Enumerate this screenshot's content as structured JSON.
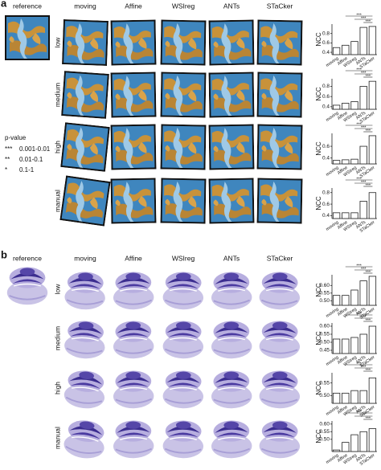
{
  "panels": [
    {
      "label": "a",
      "columns": [
        "reference",
        "moving",
        "Affine",
        "WSIreg",
        "ANTs",
        "STaCker"
      ],
      "rows": [
        "low",
        "medium",
        "high",
        "manual"
      ]
    },
    {
      "label": "b",
      "columns": [
        "reference",
        "moving",
        "Affine",
        "WSIreg",
        "ANTs",
        "STaCker"
      ],
      "rows": [
        "low",
        "medium",
        "high",
        "manual"
      ]
    }
  ],
  "legend": {
    "title": "p-value",
    "items": [
      {
        "symbol": "***",
        "range": "0.001-0.01"
      },
      {
        "symbol": "**",
        "range": "0.01-0.1"
      },
      {
        "symbol": "*",
        "range": "0.1-1"
      }
    ]
  },
  "chart_data": [
    {
      "type": "bar",
      "ylabel": "NCC",
      "categories": [
        "moving",
        "Affine",
        "WSIreg",
        "ANTs",
        "STaCker"
      ],
      "values": [
        0.5,
        0.55,
        0.63,
        0.93,
        0.95
      ],
      "ylim": [
        0.35,
        1.0
      ],
      "yticks": [
        0.4,
        0.6,
        0.8
      ],
      "significance": [
        "***",
        "***",
        "***"
      ],
      "color": "#ffffff"
    },
    {
      "type": "bar",
      "ylabel": "NCC",
      "categories": [
        "moving",
        "Affine",
        "WSIreg",
        "ANTs",
        "STaCker"
      ],
      "values": [
        0.43,
        0.47,
        0.5,
        0.8,
        0.9
      ],
      "ylim": [
        0.35,
        0.95
      ],
      "yticks": [
        0.4,
        0.6,
        0.8
      ],
      "significance": [
        "***",
        "***",
        "***"
      ],
      "color": "#ffffff"
    },
    {
      "type": "bar",
      "ylabel": "NCC",
      "categories": [
        "moving",
        "Affine",
        "WSIreg",
        "ANTs",
        "STaCker"
      ],
      "values": [
        0.36,
        0.37,
        0.38,
        0.6,
        0.78
      ],
      "ylim": [
        0.3,
        0.82
      ],
      "yticks": [
        0.4,
        0.6
      ],
      "significance": [
        "***",
        "***",
        "***"
      ],
      "color": "#ffffff"
    },
    {
      "type": "bar",
      "ylabel": "NCC",
      "categories": [
        "moving",
        "Affine",
        "WSIreg",
        "ANTs",
        "STaCker"
      ],
      "values": [
        0.45,
        0.45,
        0.45,
        0.65,
        0.8
      ],
      "ylim": [
        0.35,
        0.88
      ],
      "yticks": [
        0.4,
        0.6,
        0.8
      ],
      "significance": [
        "***",
        "***",
        "***"
      ],
      "color": "#ffffff"
    },
    {
      "type": "bar",
      "ylabel": "NCC",
      "categories": [
        "moving",
        "Affine",
        "WSIreg",
        "ANTs",
        "STaCker"
      ],
      "values": [
        0.535,
        0.535,
        0.57,
        0.63,
        0.66
      ],
      "ylim": [
        0.47,
        0.67
      ],
      "yticks": [
        {
          "value": 0.5,
          "label": "0.50"
        },
        {
          "value": 0.55,
          "label": "0.55"
        },
        {
          "value": 0.6,
          "label": "0.60"
        }
      ],
      "significance": [
        "***",
        "***",
        "***"
      ],
      "color": "#ffffff"
    },
    {
      "type": "bar",
      "ylabel": "NCC",
      "categories": [
        "moving",
        "Affine",
        "WSIreg",
        "ANTs",
        "STaCker"
      ],
      "values": [
        0.52,
        0.52,
        0.53,
        0.55,
        0.6
      ],
      "ylim": [
        0.43,
        0.62
      ],
      "yticks": [
        0.45,
        {
          "value": 0.5,
          "label": "0.50"
        },
        0.55,
        {
          "value": 0.6,
          "label": "0.60"
        }
      ],
      "significance": [
        "***",
        "***",
        "***"
      ],
      "color": "#ffffff"
    },
    {
      "type": "bar",
      "ylabel": "NCC",
      "categories": [
        "moving",
        "Affine",
        "WSIreg",
        "ANTs",
        "STaCker"
      ],
      "values": [
        0.51,
        0.51,
        0.52,
        0.52,
        0.57
      ],
      "ylim": [
        0.47,
        0.59
      ],
      "yticks": [
        {
          "value": 0.5,
          "label": "0.50"
        },
        0.55
      ],
      "significance": [
        "***",
        "***",
        "***"
      ],
      "color": "#ffffff"
    },
    {
      "type": "bar",
      "ylabel": "NCC",
      "categories": [
        "moving",
        "Affine",
        "WSIreg",
        "ANTs",
        "STaCker"
      ],
      "values": [
        0.43,
        0.48,
        0.53,
        0.55,
        0.57
      ],
      "ylim": [
        0.42,
        0.62
      ],
      "yticks": [
        {
          "value": 0.5,
          "label": "0.50"
        },
        0.55,
        {
          "value": 0.6,
          "label": "0.60"
        }
      ],
      "significance": [
        "***",
        "**",
        "***"
      ],
      "color": "#ffffff"
    }
  ]
}
